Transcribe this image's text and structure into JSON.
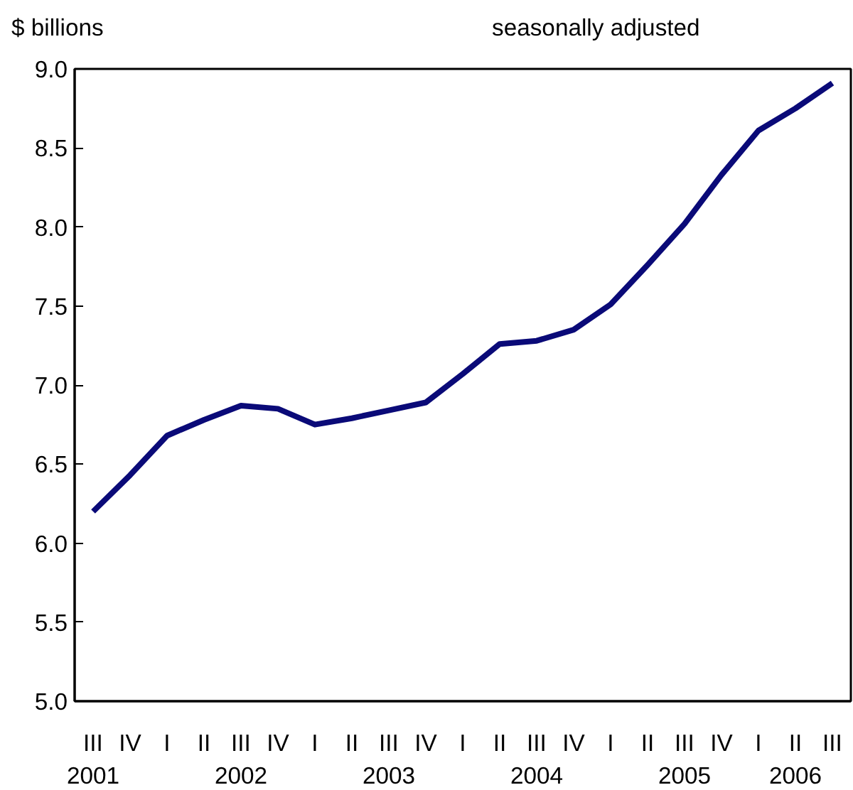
{
  "chart_data": {
    "type": "line",
    "ylabel": "$ billions",
    "subtitle": "seasonally adjusted",
    "categories": [
      "III\n2001",
      "IV",
      "I",
      "II",
      "III\n2002",
      "IV",
      "I",
      "II",
      "III\n2003",
      "IV",
      "I",
      "II",
      "III\n2004",
      "IV",
      "I",
      "II",
      "III\n2005",
      "IV",
      "I",
      "II\n2006",
      "III"
    ],
    "series": [
      {
        "color": "#0a0a78",
        "values": [
          6.2,
          6.43,
          6.68,
          6.78,
          6.87,
          6.85,
          6.75,
          6.79,
          6.84,
          6.89,
          7.07,
          7.26,
          7.28,
          7.35,
          7.51,
          7.76,
          8.02,
          8.33,
          8.61,
          8.75,
          8.91
        ]
      }
    ],
    "ylim": [
      5,
      9
    ],
    "yticks": [
      {
        "value": 5,
        "label": "5.0"
      },
      {
        "value": 5.5,
        "label": "5.5"
      },
      {
        "value": 6,
        "label": "6.0"
      },
      {
        "value": 6.5,
        "label": "6.5"
      },
      {
        "value": 7,
        "label": "7.0"
      },
      {
        "value": 7.5,
        "label": "7.5"
      },
      {
        "value": 8,
        "label": "8.0"
      },
      {
        "value": 8.5,
        "label": "8.5"
      },
      {
        "value": 9,
        "label": "9.0"
      }
    ],
    "grid": false,
    "marker": "none",
    "line_style": "solid"
  }
}
